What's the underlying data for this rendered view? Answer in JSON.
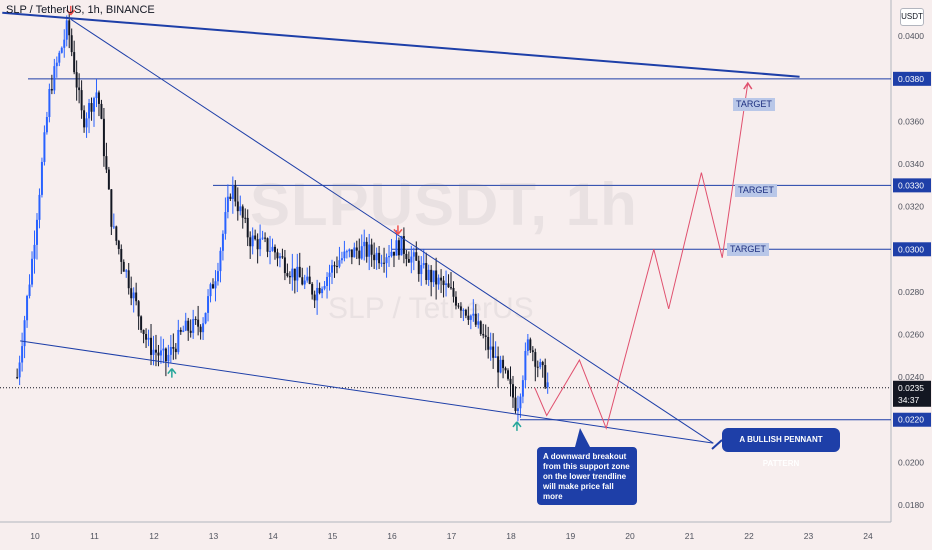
{
  "header": {
    "symbol_line": "SLP / TetherUS, 1h, BINANCE"
  },
  "currency_button": "USDT",
  "watermark": {
    "symbol": "SLPUSDT, 1h",
    "pair": "SLP / TetherUS"
  },
  "targets": [
    "TARGET",
    "TARGET",
    "TARGET"
  ],
  "notes": {
    "breakout": "A downward breakout from this support zone on the lower trendline will make price fall more",
    "pattern": "A BULLISH PENNANT PATTERN"
  },
  "countdown": "34:37",
  "colors": {
    "background": "#f7eeee",
    "candle_up": "#2962ff",
    "candle_down": "#131722",
    "trendline": "#1e3fa8",
    "projection": "#e0506e",
    "label_bg": "#1e3fa8",
    "arrow_up": "#26a69a",
    "arrow_down": "#ef5350"
  },
  "icons": {
    "arrow_down": "red-down-arrow-icon",
    "arrow_up": "green-up-arrow-icon"
  },
  "chart_data": {
    "type": "candlestick",
    "x_axis": {
      "tick_labels": [
        "10",
        "11",
        "12",
        "13",
        "14",
        "15",
        "16",
        "17",
        "18",
        "19",
        "20",
        "21",
        "22",
        "23",
        "24"
      ]
    },
    "y_axis": {
      "tick_labels": [
        "0.0400",
        "0.0380",
        "0.0360",
        "0.0340",
        "0.0320",
        "0.0300",
        "0.0280",
        "0.0260",
        "0.0240",
        "0.0220",
        "0.0200",
        "0.0180"
      ],
      "range": [
        0.0172,
        0.0417
      ]
    },
    "current_price": "0.0235",
    "price_levels": [
      {
        "value": 0.038,
        "label": "0.0380"
      },
      {
        "value": 0.033,
        "label": "0.0330"
      },
      {
        "value": 0.03,
        "label": "0.0300"
      },
      {
        "value": 0.022,
        "label": "0.0220"
      }
    ],
    "price_path": [
      [
        9.7,
        0.024
      ],
      [
        9.95,
        0.0295
      ],
      [
        10.25,
        0.0375
      ],
      [
        10.55,
        0.0405
      ],
      [
        10.8,
        0.036
      ],
      [
        11.05,
        0.0375
      ],
      [
        11.3,
        0.031
      ],
      [
        11.6,
        0.0283
      ],
      [
        11.9,
        0.0255
      ],
      [
        12.2,
        0.0248
      ],
      [
        12.5,
        0.0262
      ],
      [
        12.8,
        0.0265
      ],
      [
        13.05,
        0.029
      ],
      [
        13.3,
        0.033
      ],
      [
        13.6,
        0.0305
      ],
      [
        14.0,
        0.03
      ],
      [
        14.3,
        0.029
      ],
      [
        14.7,
        0.028
      ],
      [
        15.1,
        0.0295
      ],
      [
        15.45,
        0.03
      ],
      [
        15.8,
        0.0297
      ],
      [
        16.15,
        0.0302
      ],
      [
        16.5,
        0.029
      ],
      [
        16.9,
        0.0282
      ],
      [
        17.3,
        0.027
      ],
      [
        17.6,
        0.0255
      ],
      [
        17.9,
        0.024
      ],
      [
        18.1,
        0.0226
      ],
      [
        18.3,
        0.0258
      ],
      [
        18.45,
        0.0246
      ],
      [
        18.65,
        0.0235
      ]
    ],
    "annotations": [
      {
        "type": "trendline",
        "points": [
          [
            9.45,
            0.0411
          ],
          [
            22.85,
            0.0381
          ]
        ]
      },
      {
        "type": "trendline",
        "points": [
          [
            10.6,
            0.0408
          ],
          [
            21.4,
            0.0209
          ]
        ]
      },
      {
        "type": "trendline",
        "points": [
          [
            9.75,
            0.0257
          ],
          [
            21.4,
            0.0209
          ]
        ]
      },
      {
        "type": "projection",
        "points": [
          [
            18.4,
            0.0235
          ],
          [
            18.6,
            0.0222
          ],
          [
            19.15,
            0.0248
          ],
          [
            19.6,
            0.0216
          ],
          [
            20.4,
            0.03
          ],
          [
            20.65,
            0.0272
          ],
          [
            21.2,
            0.0336
          ],
          [
            21.55,
            0.0296
          ],
          [
            21.98,
            0.0378
          ]
        ]
      }
    ],
    "markers": [
      {
        "type": "arrow_down",
        "x": 10.6,
        "y": 0.041
      },
      {
        "type": "arrow_down",
        "x": 16.1,
        "y": 0.0307
      },
      {
        "type": "arrow_up",
        "x": 12.3,
        "y": 0.0244
      },
      {
        "type": "arrow_up",
        "x": 18.1,
        "y": 0.0219
      }
    ]
  }
}
